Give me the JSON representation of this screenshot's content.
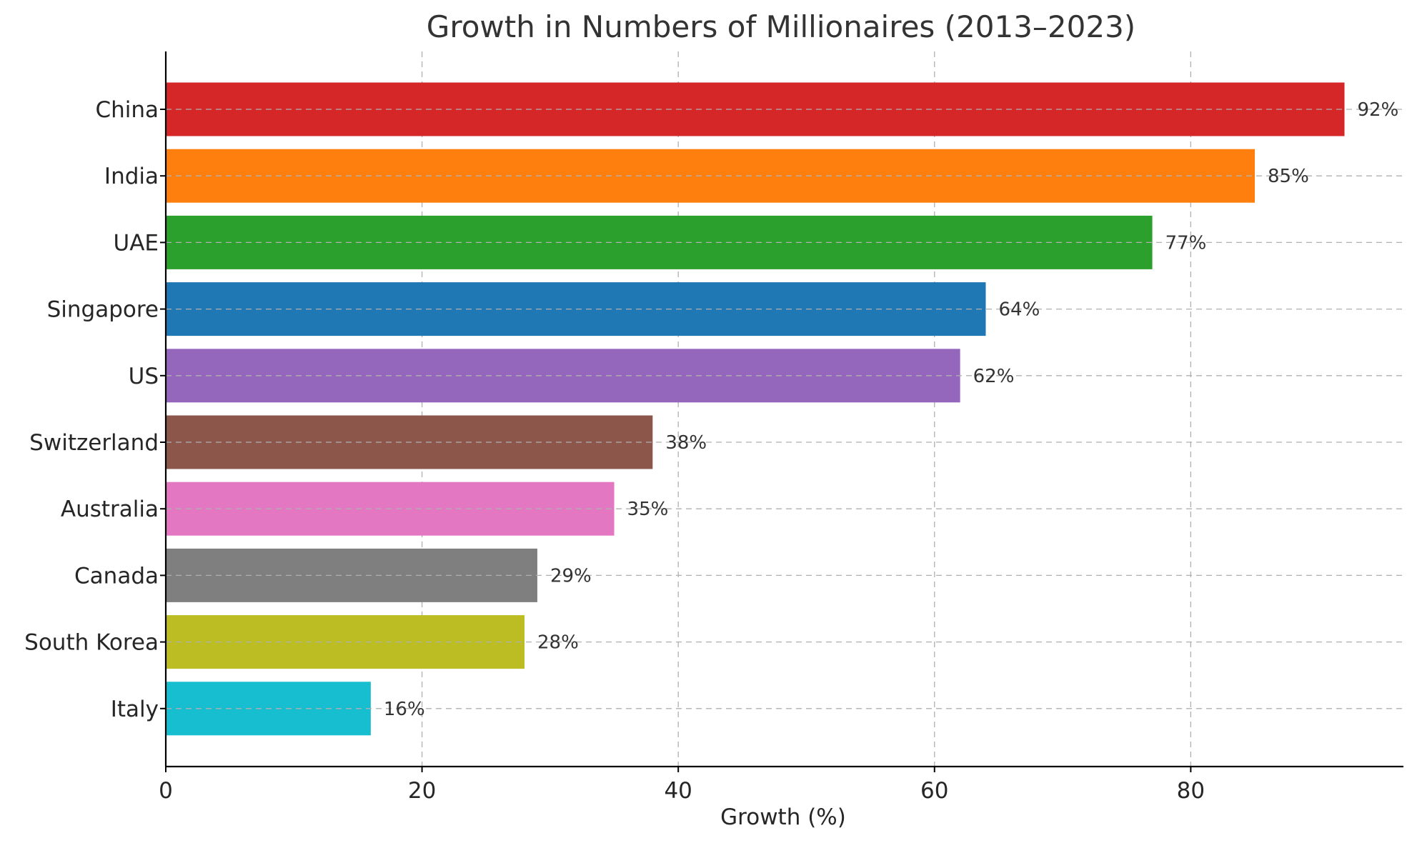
{
  "chart_data": {
    "type": "bar",
    "orientation": "horizontal",
    "title": "Growth in Numbers of Millionaires (2013–2023)",
    "xlabel": "Growth (%)",
    "ylabel": "",
    "xlim": [
      0,
      96.6
    ],
    "x_ticks": [
      0,
      20,
      40,
      60,
      80
    ],
    "grid": true,
    "categories": [
      "China",
      "India",
      "UAE",
      "Singapore",
      "US",
      "Switzerland",
      "Australia",
      "Canada",
      "South Korea",
      "Italy"
    ],
    "values": [
      92,
      85,
      77,
      64,
      62,
      38,
      35,
      29,
      28,
      16
    ],
    "value_labels": [
      "92%",
      "85%",
      "77%",
      "64%",
      "62%",
      "38%",
      "35%",
      "29%",
      "28%",
      "16%"
    ],
    "colors": [
      "#d62728",
      "#ff7f0e",
      "#2ca02c",
      "#1f77b4",
      "#9467bd",
      "#8c564b",
      "#e377c2",
      "#7f7f7f",
      "#bcbd22",
      "#17becf"
    ]
  }
}
